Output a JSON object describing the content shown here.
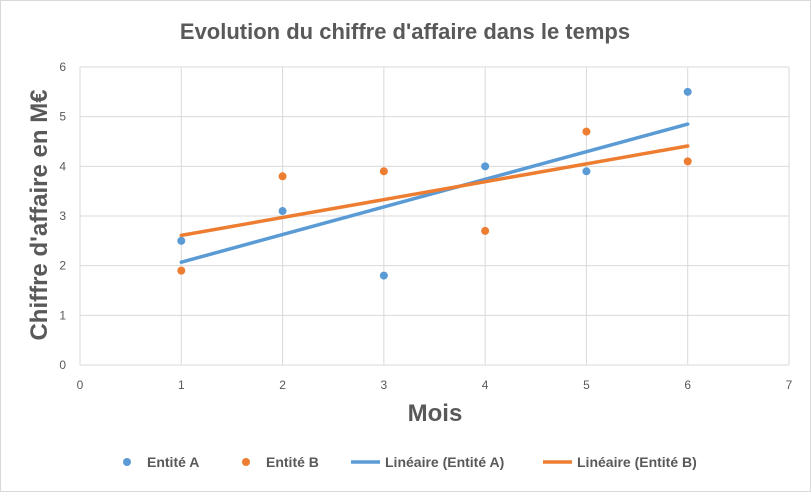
{
  "chart_data": {
    "type": "scatter",
    "title": "Evolution du chiffre d'affaire dans le temps",
    "xlabel": "Mois",
    "ylabel": "Chiffre d'affaire en M€",
    "xlim": [
      0,
      7
    ],
    "ylim": [
      0,
      6
    ],
    "xticks": [
      "0",
      "1",
      "2",
      "3",
      "4",
      "5",
      "6",
      "7"
    ],
    "yticks": [
      "0",
      "1",
      "2",
      "3",
      "4",
      "5",
      "6"
    ],
    "grid": true,
    "legend_position": "bottom",
    "series": [
      {
        "name": "Entité A",
        "color": "#5b9bd5",
        "points": [
          [
            1,
            2.5
          ],
          [
            2,
            3.1
          ],
          [
            3,
            1.8
          ],
          [
            4,
            4.0
          ],
          [
            5,
            3.9
          ],
          [
            6,
            5.5
          ]
        ],
        "trendline": {
          "name": "Linéaire (Entité A)",
          "x": [
            1,
            6
          ],
          "y": [
            2.07,
            4.85
          ]
        }
      },
      {
        "name": "Entité B",
        "color": "#ed7d31",
        "points": [
          [
            1,
            1.9
          ],
          [
            2,
            3.8
          ],
          [
            3,
            3.9
          ],
          [
            4,
            2.7
          ],
          [
            5,
            4.7
          ],
          [
            6,
            4.1
          ]
        ],
        "trendline": {
          "name": "Linéaire (Entité B)",
          "x": [
            1,
            6
          ],
          "y": [
            2.61,
            4.41
          ]
        }
      }
    ]
  }
}
